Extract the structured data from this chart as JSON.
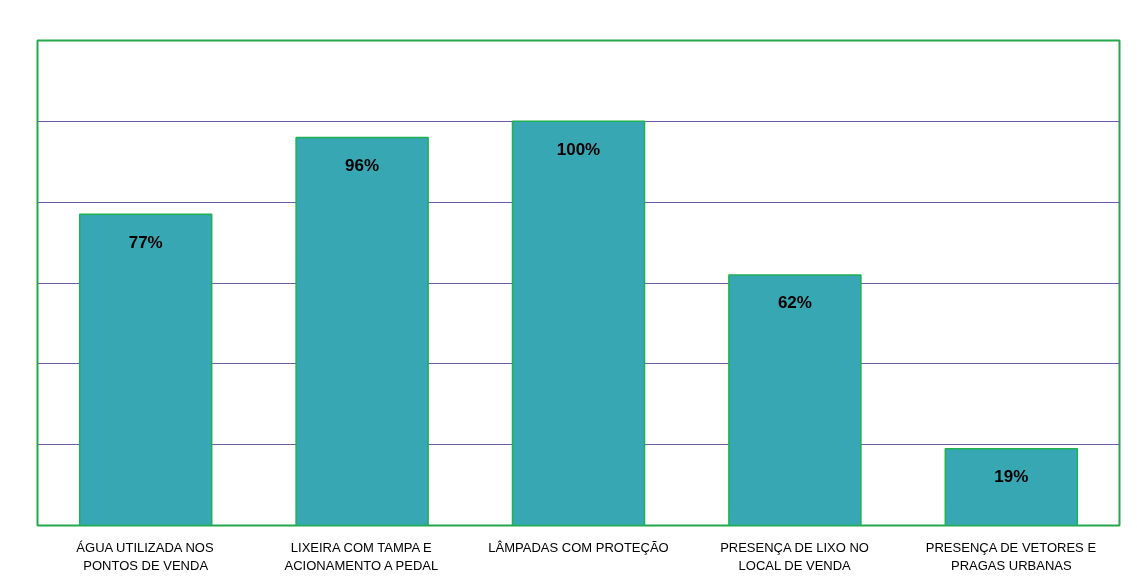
{
  "chart_data": {
    "type": "bar",
    "categories": [
      "ÁGUA UTILIZADA NOS PONTOS DE VENDA",
      "LIXEIRA COM TAMPA E ACIONAMENTO A PEDAL",
      "LÂMPADAS COM PROTEÇÃO",
      "PRESENÇA DE LIXO NO LOCAL DE VENDA",
      "PRESENÇA DE VETORES E PRAGAS URBANAS"
    ],
    "values": [
      77,
      96,
      100,
      62,
      19
    ],
    "value_labels": [
      "77%",
      "96%",
      "100%",
      "62%",
      "19%"
    ],
    "color": "#37a7b4",
    "ylim": [
      0,
      120
    ],
    "yticks": [
      {
        "value": 0,
        "label": null
      },
      {
        "value": 20,
        "label": null
      },
      {
        "value": 40,
        "label": null
      },
      {
        "value": 60,
        "label": null
      },
      {
        "value": 80,
        "label": null
      },
      {
        "value": 100,
        "label": null
      },
      {
        "value": 120,
        "label": null
      }
    ],
    "grid": "y",
    "tick_labels": "x"
  }
}
